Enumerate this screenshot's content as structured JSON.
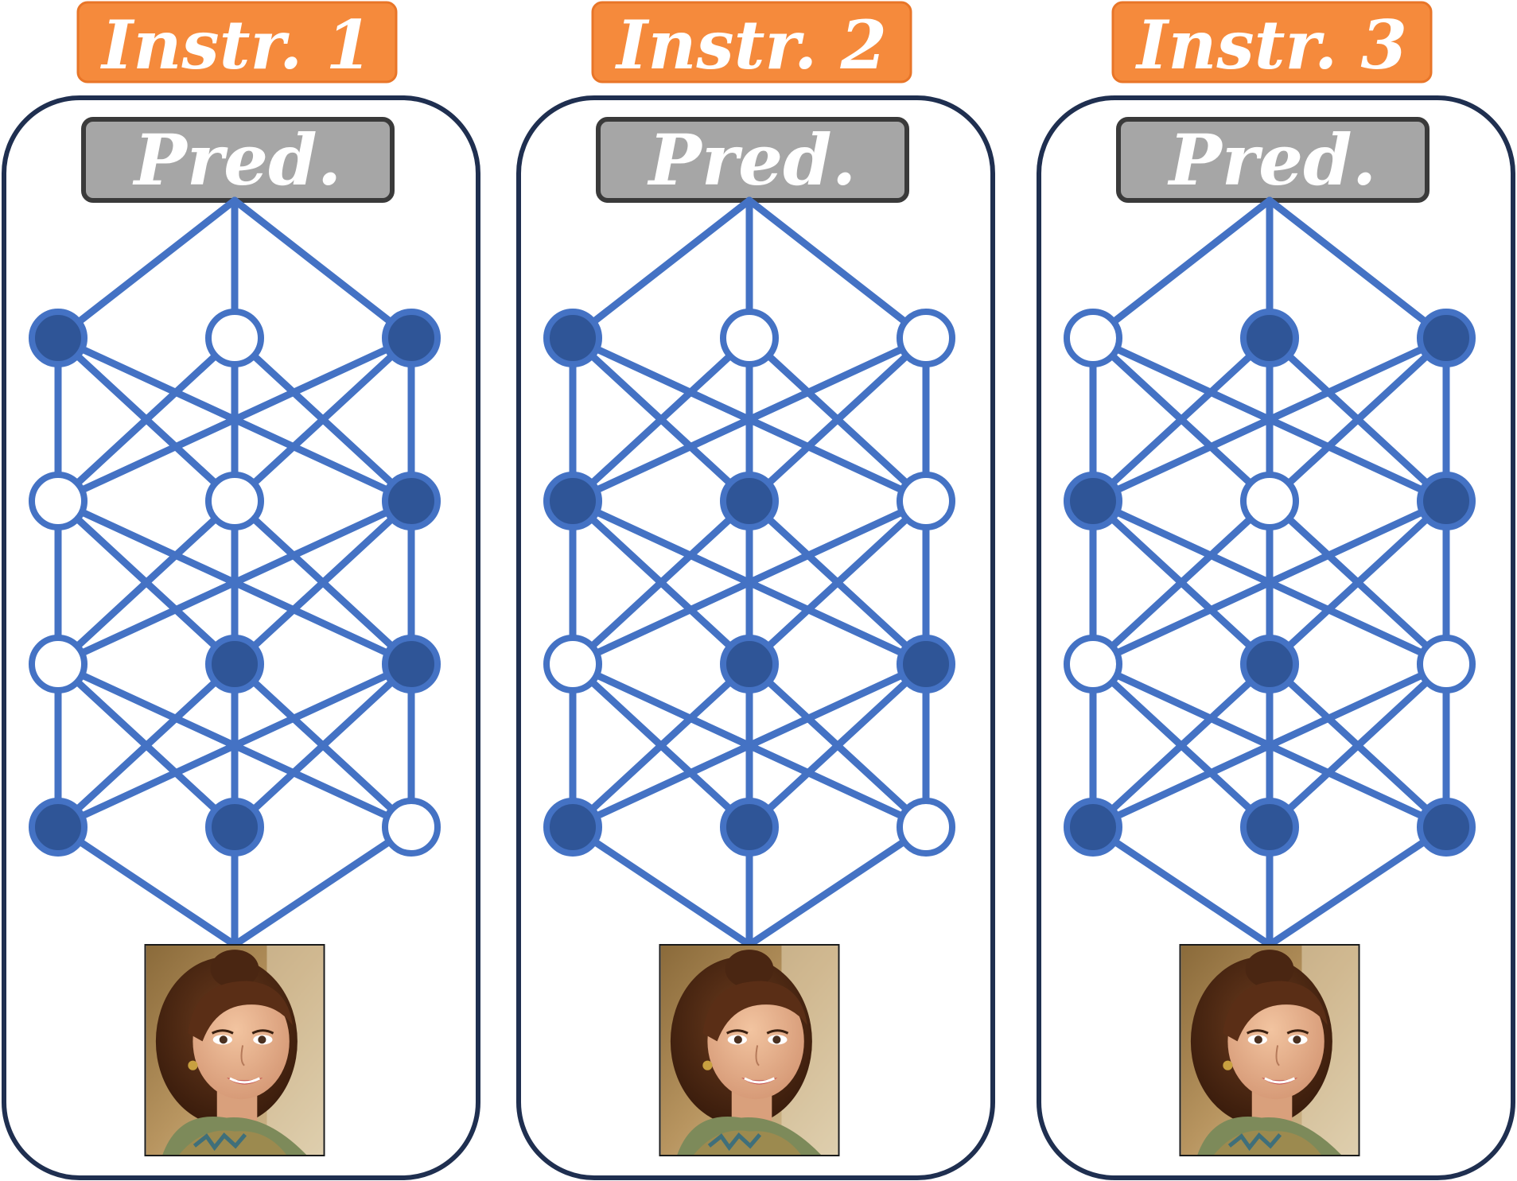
{
  "diagram": {
    "panels": [
      {
        "instruction_label": "Instr. 1",
        "prediction_label": "Pred.",
        "layers": [
          [
            true,
            false,
            true
          ],
          [
            false,
            false,
            true
          ],
          [
            false,
            true,
            true
          ],
          [
            true,
            true,
            false
          ]
        ]
      },
      {
        "instruction_label": "Instr. 2",
        "prediction_label": "Pred.",
        "layers": [
          [
            true,
            false,
            false
          ],
          [
            true,
            true,
            false
          ],
          [
            false,
            true,
            true
          ],
          [
            true,
            true,
            false
          ]
        ]
      },
      {
        "instruction_label": "Instr. 3",
        "prediction_label": "Pred.",
        "layers": [
          [
            false,
            true,
            true
          ],
          [
            true,
            false,
            true
          ],
          [
            false,
            true,
            false
          ],
          [
            true,
            true,
            true
          ]
        ]
      }
    ],
    "input_image": "face-photo",
    "colors": {
      "instruction_fill": "#f58a3c",
      "instruction_border": "#e87528",
      "prediction_fill": "#a6a6a6",
      "prediction_border": "#3a3a3a",
      "panel_border": "#1f2f50",
      "edge": "#4472c4",
      "node_active": "#2f5597",
      "node_inactive": "#ffffff"
    }
  }
}
